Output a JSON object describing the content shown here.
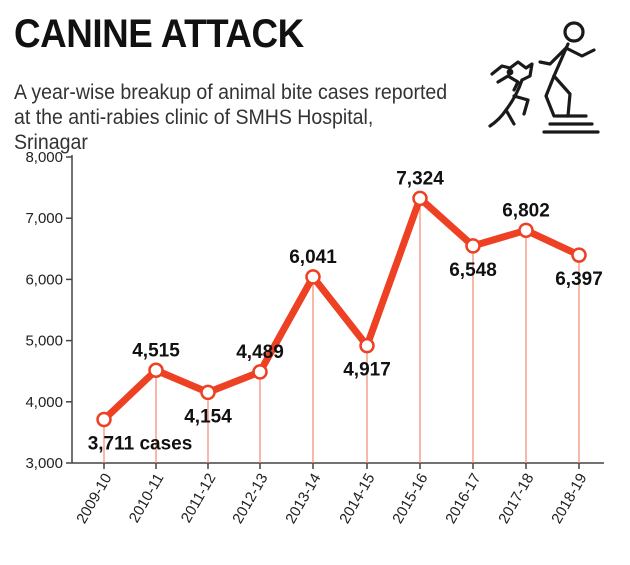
{
  "header": {
    "title": "CANINE ATTACK",
    "subtitle": "A year-wise breakup of animal bite cases reported at the anti-rabies clinic of SMHS Hospital, Srinagar"
  },
  "illustration": {
    "icon": "dog-attacking-person-icon"
  },
  "colors": {
    "line": "#ee4023",
    "drop": "#f08a70",
    "axis": "#444444",
    "point_fill": "#ffffff"
  },
  "chart_data": {
    "type": "line",
    "title": "CANINE ATTACK",
    "xlabel": "",
    "ylabel": "",
    "categories": [
      "2009-10",
      "2010-11",
      "2011-12",
      "2012-13",
      "2013-14",
      "2014-15",
      "2015-16",
      "2016-17",
      "2017-18",
      "2018-19"
    ],
    "series": [
      {
        "values": [
          3711,
          4515,
          4154,
          4489,
          6041,
          4917,
          7324,
          6548,
          6802,
          6397
        ]
      }
    ],
    "data_labels": [
      "3,711 cases",
      "4,515",
      "4,154",
      "4,489",
      "6,041",
      "4,917",
      "7,324",
      "6,548",
      "6,802",
      "6,397"
    ],
    "label_positions": [
      "below",
      "above",
      "below",
      "above",
      "above",
      "below",
      "above",
      "below",
      "above",
      "below"
    ],
    "yticks": [
      "3,000",
      "4,000",
      "5,000",
      "6,000",
      "7,000",
      "8,000"
    ],
    "ylim": [
      3000,
      8000
    ],
    "grid": false,
    "legend": "none"
  }
}
